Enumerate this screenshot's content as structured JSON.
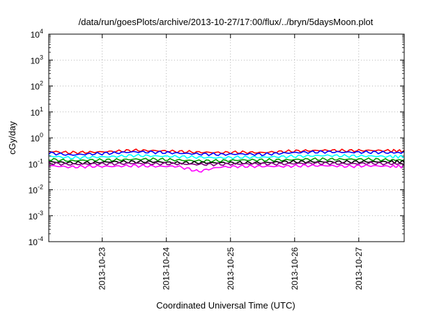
{
  "chart_data": {
    "type": "line",
    "title": "/data/run/goesPlots/archive/2013-10-27/17:00/flux/../bryn/5daysMoon.plot",
    "xlabel": "Coordinated Universal Time (UTC)",
    "ylabel": "cGy/day",
    "yscale": "log",
    "ylim": [
      0.0001,
      10000
    ],
    "xlim": [
      "2013-10-22T04:00",
      "2013-10-27T17:00"
    ],
    "grid": true,
    "y_ticks": [
      {
        "base": "10",
        "exp": "-4",
        "value": 0.0001
      },
      {
        "base": "10",
        "exp": "-3",
        "value": 0.001
      },
      {
        "base": "10",
        "exp": "-2",
        "value": 0.01
      },
      {
        "base": "10",
        "exp": "-1",
        "value": 0.1
      },
      {
        "base": "10",
        "exp": "0",
        "value": 1
      },
      {
        "base": "10",
        "exp": "1",
        "value": 10
      },
      {
        "base": "10",
        "exp": "2",
        "value": 100
      },
      {
        "base": "10",
        "exp": "3",
        "value": 1000
      },
      {
        "base": "10",
        "exp": "4",
        "value": 10000
      }
    ],
    "x_ticks": [
      "2013-10-23",
      "2013-10-24",
      "2013-10-25",
      "2013-10-26",
      "2013-10-27"
    ],
    "x": [
      "2013-10-22T04:00",
      "2013-10-22T12:00",
      "2013-10-22T20:00",
      "2013-10-23T04:00",
      "2013-10-23T12:00",
      "2013-10-23T20:00",
      "2013-10-24T04:00",
      "2013-10-24T12:00",
      "2013-10-24T20:00",
      "2013-10-25T04:00",
      "2013-10-25T12:00",
      "2013-10-25T20:00",
      "2013-10-26T04:00",
      "2013-10-26T12:00",
      "2013-10-26T20:00",
      "2013-10-27T04:00",
      "2013-10-27T12:00",
      "2013-10-27T17:00"
    ],
    "series": [
      {
        "color": "#ff0000",
        "values": [
          0.3,
          0.27,
          0.28,
          0.3,
          0.33,
          0.32,
          0.3,
          0.28,
          0.27,
          0.28,
          0.27,
          0.3,
          0.32,
          0.33,
          0.32,
          0.33,
          0.32,
          0.31
        ]
      },
      {
        "color": "#0000ff",
        "values": [
          0.26,
          0.22,
          0.24,
          0.26,
          0.29,
          0.28,
          0.26,
          0.24,
          0.23,
          0.24,
          0.23,
          0.26,
          0.28,
          0.29,
          0.28,
          0.28,
          0.27,
          0.27
        ]
      },
      {
        "color": "#00ffff",
        "values": [
          0.2,
          0.17,
          0.18,
          0.19,
          0.21,
          0.2,
          0.19,
          0.18,
          0.17,
          0.18,
          0.18,
          0.19,
          0.2,
          0.21,
          0.2,
          0.2,
          0.19,
          0.19
        ]
      },
      {
        "color": "#00a000",
        "values": [
          0.15,
          0.13,
          0.14,
          0.14,
          0.15,
          0.15,
          0.14,
          0.13,
          0.13,
          0.14,
          0.14,
          0.14,
          0.15,
          0.15,
          0.15,
          0.15,
          0.14,
          0.14
        ]
      },
      {
        "color": "#000000",
        "values": [
          0.12,
          0.11,
          0.11,
          0.12,
          0.12,
          0.12,
          0.11,
          0.11,
          0.11,
          0.11,
          0.11,
          0.12,
          0.12,
          0.12,
          0.12,
          0.12,
          0.12,
          0.12
        ]
      },
      {
        "color": "#800080",
        "values": [
          0.105,
          0.095,
          0.1,
          0.1,
          0.105,
          0.1,
          0.1,
          0.095,
          0.095,
          0.1,
          0.1,
          0.1,
          0.105,
          0.105,
          0.1,
          0.105,
          0.1,
          0.1
        ]
      },
      {
        "color": "#ff00ff",
        "values": [
          0.085,
          0.075,
          0.08,
          0.08,
          0.085,
          0.08,
          0.08,
          0.05,
          0.075,
          0.08,
          0.08,
          0.08,
          0.085,
          0.085,
          0.08,
          0.085,
          0.08,
          0.08
        ]
      }
    ]
  }
}
